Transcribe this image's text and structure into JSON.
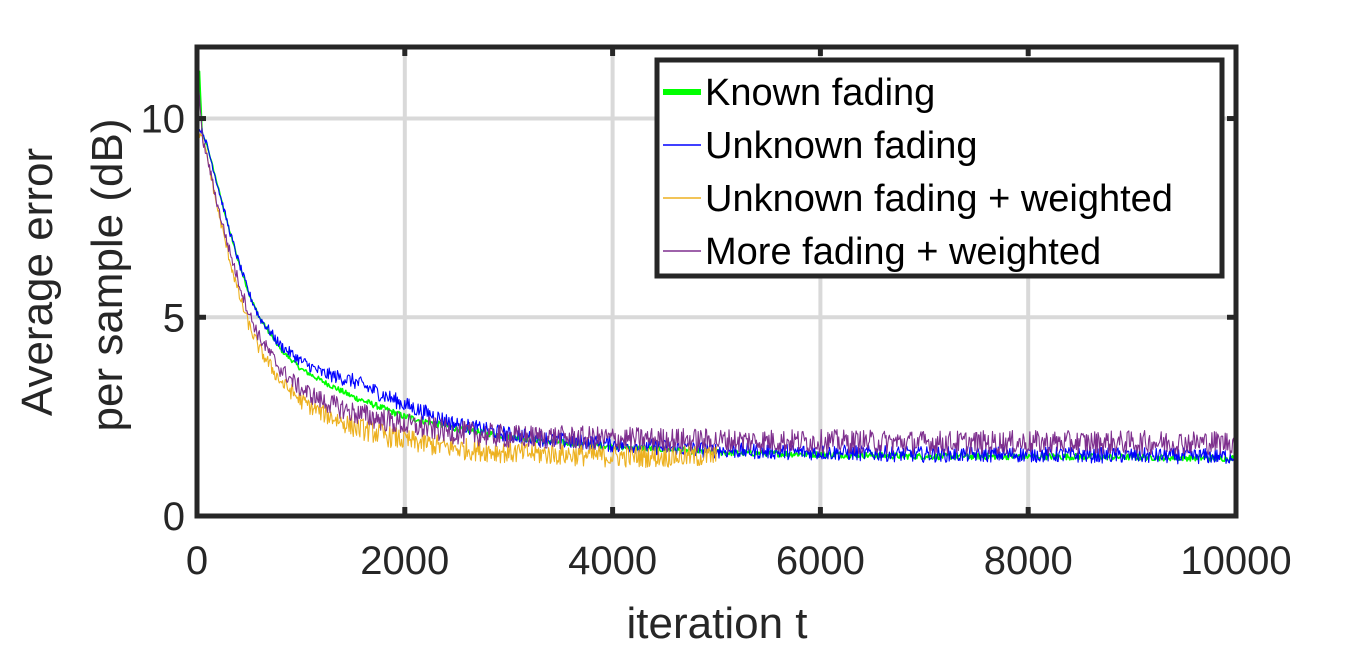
{
  "chart_data": {
    "type": "line",
    "title": "",
    "xlabel": "iteration t",
    "ylabel_lines": [
      "Average error",
      "per sample (dB)"
    ],
    "xlim": [
      0,
      10000
    ],
    "ylim": [
      0,
      11.8
    ],
    "xticks": [
      0,
      2000,
      4000,
      6000,
      8000,
      10000
    ],
    "xtick_labels": [
      "0",
      "2000",
      "4000",
      "6000",
      "8000",
      "10000"
    ],
    "yticks": [
      0,
      5,
      10
    ],
    "ytick_labels": [
      "0",
      "5",
      "10"
    ],
    "grid": true,
    "legend_position": "top-right",
    "series": [
      {
        "name": "Known fading",
        "color": "#00ff00",
        "x": [
          0,
          20,
          50,
          100,
          200,
          300,
          400,
          500,
          600,
          800,
          1000,
          1200,
          1500,
          2000,
          2500,
          3000,
          3500,
          4000,
          5000,
          6000,
          7000,
          8000,
          9000,
          10000
        ],
        "y": [
          10.3,
          11.4,
          9.6,
          9.3,
          8.3,
          7.3,
          6.4,
          5.6,
          5.0,
          4.2,
          3.7,
          3.4,
          3.0,
          2.5,
          2.2,
          2.0,
          1.85,
          1.75,
          1.6,
          1.55,
          1.5,
          1.5,
          1.48,
          1.45
        ],
        "noise": 0.08
      },
      {
        "name": "Unknown fading",
        "color": "#0000ff",
        "x": [
          0,
          50,
          100,
          200,
          300,
          400,
          500,
          600,
          800,
          1000,
          1200,
          1500,
          2000,
          2500,
          3000,
          3500,
          4000,
          5000,
          6000,
          7000,
          8000,
          9000,
          10000
        ],
        "y": [
          9.7,
          9.7,
          9.3,
          8.3,
          7.3,
          6.4,
          5.6,
          5.0,
          4.3,
          3.9,
          3.6,
          3.4,
          2.8,
          2.3,
          2.05,
          1.9,
          1.8,
          1.65,
          1.6,
          1.55,
          1.55,
          1.52,
          1.5
        ],
        "noise": 0.2
      },
      {
        "name": "Unknown fading + weighted",
        "color": "#edb120",
        "x": [
          0,
          50,
          100,
          200,
          300,
          400,
          500,
          600,
          800,
          1000,
          1200,
          1500,
          2000,
          2500,
          3000,
          3500,
          4000,
          4500,
          5000
        ],
        "y": [
          9.7,
          9.5,
          9.0,
          7.7,
          6.6,
          5.6,
          4.8,
          4.2,
          3.4,
          2.9,
          2.6,
          2.25,
          1.9,
          1.7,
          1.6,
          1.55,
          1.5,
          1.5,
          1.5
        ],
        "noise": 0.28
      },
      {
        "name": "More fading + weighted",
        "color": "#7e2f8e",
        "x": [
          0,
          50,
          100,
          200,
          300,
          400,
          500,
          600,
          800,
          1000,
          1200,
          1500,
          2000,
          2500,
          3000,
          4000,
          5000,
          6000,
          7000,
          8000,
          9000,
          10000
        ],
        "y": [
          11.5,
          9.5,
          9.0,
          7.8,
          6.8,
          5.9,
          5.1,
          4.5,
          3.7,
          3.2,
          2.9,
          2.6,
          2.3,
          2.1,
          2.0,
          1.95,
          1.9,
          1.88,
          1.85,
          1.85,
          1.85,
          1.85
        ],
        "noise": 0.3
      }
    ]
  }
}
